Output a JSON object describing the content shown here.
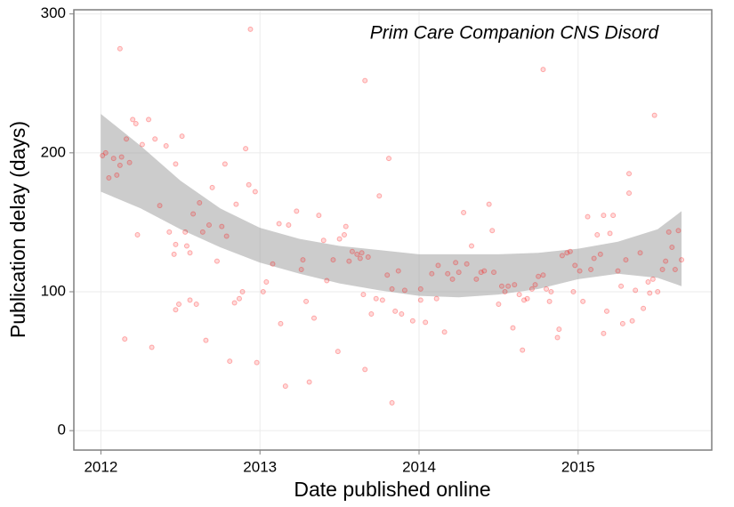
{
  "chart_data": {
    "type": "scatter",
    "annotation": "Prim Care Companion CNS Disord",
    "xlabel": "Date published online",
    "ylabel": "Publication delay (days)",
    "xlim": [
      2011.83,
      2015.84
    ],
    "ylim": [
      -14,
      303
    ],
    "xticks": [
      2012,
      2013,
      2014,
      2015
    ],
    "yticks": [
      0,
      100,
      200,
      300
    ],
    "grid": true,
    "color": "#ff0000",
    "x": [
      2012.01,
      2012.03,
      2012.05,
      2012.08,
      2012.1,
      2012.12,
      2012.12,
      2012.13,
      2012.15,
      2012.16,
      2012.18,
      2012.2,
      2012.22,
      2012.23,
      2012.26,
      2012.3,
      2012.32,
      2012.34,
      2012.37,
      2012.41,
      2012.43,
      2012.46,
      2012.47,
      2012.47,
      2012.49,
      2012.47,
      2012.51,
      2012.53,
      2012.54,
      2012.56,
      2012.56,
      2012.58,
      2012.6,
      2012.62,
      2012.64,
      2012.66,
      2012.68,
      2012.7,
      2012.73,
      2012.76,
      2012.78,
      2012.79,
      2012.81,
      2012.84,
      2012.85,
      2012.87,
      2012.89,
      2012.91,
      2012.93,
      2012.94,
      2012.97,
      2012.98,
      2013.02,
      2013.04,
      2013.08,
      2013.12,
      2013.13,
      2013.16,
      2013.18,
      2013.23,
      2013.26,
      2013.27,
      2013.29,
      2013.31,
      2013.34,
      2013.37,
      2013.4,
      2013.42,
      2013.46,
      2013.49,
      2013.5,
      2013.53,
      2013.54,
      2013.56,
      2013.58,
      2013.61,
      2013.63,
      2013.64,
      2013.66,
      2013.66,
      2013.65,
      2013.68,
      2013.7,
      2013.73,
      2013.75,
      2013.77,
      2013.8,
      2013.81,
      2013.83,
      2013.83,
      2013.85,
      2013.87,
      2013.89,
      2013.91,
      2013.96,
      2014.01,
      2014.01,
      2014.04,
      2014.08,
      2014.11,
      2014.12,
      2014.16,
      2014.18,
      2014.21,
      2014.23,
      2014.25,
      2014.28,
      2014.3,
      2014.33,
      2014.36,
      2014.39,
      2014.41,
      2014.44,
      2014.46,
      2014.47,
      2014.5,
      2014.52,
      2014.54,
      2014.56,
      2014.59,
      2014.6,
      2014.63,
      2014.65,
      2014.66,
      2014.68,
      2014.71,
      2014.73,
      2014.75,
      2014.78,
      2014.78,
      2014.8,
      2014.82,
      2014.83,
      2014.87,
      2014.88,
      2014.9,
      2014.93,
      2014.95,
      2014.97,
      2014.98,
      2015.01,
      2015.03,
      2015.06,
      2015.08,
      2015.1,
      2015.12,
      2015.14,
      2015.16,
      2015.16,
      2015.18,
      2015.2,
      2015.22,
      2015.25,
      2015.27,
      2015.28,
      2015.3,
      2015.32,
      2015.32,
      2015.34,
      2015.36,
      2015.39,
      2015.41,
      2015.44,
      2015.45,
      2015.47,
      2015.48,
      2015.5,
      2015.53,
      2015.55,
      2015.57,
      2015.59,
      2015.61,
      2015.63,
      2015.65
    ],
    "values": [
      198,
      200,
      182,
      196,
      184,
      191,
      275,
      197,
      66,
      210,
      193,
      224,
      221,
      141,
      206,
      224,
      60,
      210,
      162,
      205,
      143,
      127,
      134,
      192,
      91,
      87,
      212,
      143,
      133,
      94,
      128,
      156,
      91,
      164,
      143,
      65,
      148,
      175,
      122,
      147,
      192,
      140,
      50,
      92,
      163,
      95,
      100,
      203,
      177,
      289,
      172,
      49,
      100,
      107,
      120,
      149,
      77,
      32,
      148,
      158,
      116,
      123,
      93,
      35,
      81,
      155,
      137,
      108,
      123,
      57,
      138,
      141,
      147,
      122,
      129,
      127,
      124,
      128,
      252,
      44,
      98,
      125,
      84,
      95,
      169,
      94,
      112,
      196,
      102,
      20,
      86,
      115,
      84,
      101,
      79,
      102,
      94,
      78,
      113,
      95,
      119,
      71,
      113,
      109,
      121,
      114,
      157,
      120,
      133,
      109,
      114,
      115,
      163,
      144,
      114,
      91,
      104,
      100,
      104,
      74,
      105,
      98,
      58,
      94,
      95,
      102,
      105,
      111,
      112,
      260,
      102,
      93,
      100,
      67,
      73,
      126,
      128,
      129,
      100,
      119,
      115,
      93,
      154,
      116,
      124,
      141,
      127,
      155,
      70,
      86,
      142,
      155,
      115,
      104,
      77,
      123,
      185,
      171,
      79,
      101,
      128,
      88,
      107,
      99,
      109,
      227,
      100,
      116,
      122,
      143,
      132,
      116,
      144,
      123
    ],
    "band": {
      "color": "#999999",
      "x": [
        2012.0,
        2012.25,
        2012.5,
        2012.75,
        2013.0,
        2013.25,
        2013.5,
        2013.75,
        2014.0,
        2014.25,
        2014.5,
        2014.75,
        2015.0,
        2015.25,
        2015.5,
        2015.65
      ],
      "lower": [
        172,
        160,
        145,
        132,
        121,
        113,
        106,
        101,
        97,
        96,
        98,
        102,
        109,
        113,
        110,
        104
      ],
      "upper": [
        228,
        205,
        180,
        160,
        146,
        138,
        133,
        130,
        127,
        127,
        127,
        128,
        131,
        136,
        145,
        158
      ]
    }
  }
}
